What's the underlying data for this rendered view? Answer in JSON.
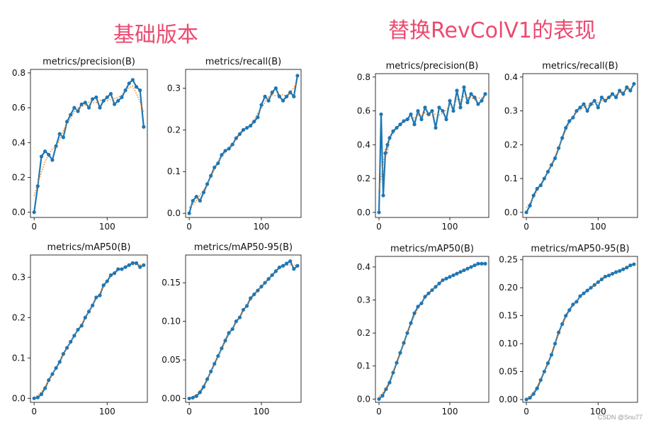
{
  "headings": {
    "left": "基础版本",
    "right": "替换RevColV1的表现"
  },
  "watermark": "CSDN @Snu77",
  "colors": {
    "heading": "#ec4a6f",
    "series": "#1f77b4",
    "smooth": "#ff7f0e"
  },
  "chart_data": [
    {
      "id": "base-precision",
      "type": "line",
      "title": "metrics/precision(B)",
      "xlim": [
        -5,
        155
      ],
      "ylim": [
        -0.03,
        0.82
      ],
      "xticks": [
        0,
        100
      ],
      "yticks": [
        0.0,
        0.2,
        0.4,
        0.6,
        0.8
      ],
      "series": [
        {
          "x": [
            0,
            5,
            10,
            15,
            20,
            25,
            30,
            35,
            40,
            45,
            50,
            55,
            60,
            65,
            70,
            75,
            80,
            85,
            90,
            95,
            100,
            105,
            110,
            115,
            120,
            125,
            130,
            135,
            140,
            145,
            150
          ],
          "values": [
            0.0,
            0.15,
            0.32,
            0.35,
            0.33,
            0.3,
            0.38,
            0.45,
            0.43,
            0.52,
            0.56,
            0.6,
            0.58,
            0.62,
            0.63,
            0.6,
            0.65,
            0.66,
            0.6,
            0.64,
            0.66,
            0.68,
            0.62,
            0.64,
            0.66,
            0.7,
            0.74,
            0.76,
            0.72,
            0.7,
            0.49
          ]
        }
      ]
    },
    {
      "id": "base-recall",
      "type": "line",
      "title": "metrics/recall(B)",
      "xlim": [
        -5,
        155
      ],
      "ylim": [
        -0.01,
        0.345
      ],
      "xticks": [
        0,
        100
      ],
      "yticks": [
        0.0,
        0.1,
        0.2,
        0.3
      ],
      "series": [
        {
          "x": [
            0,
            5,
            10,
            15,
            20,
            25,
            30,
            35,
            40,
            45,
            50,
            55,
            60,
            65,
            70,
            75,
            80,
            85,
            90,
            95,
            100,
            105,
            110,
            115,
            120,
            125,
            130,
            135,
            140,
            145,
            150
          ],
          "values": [
            0.0,
            0.03,
            0.04,
            0.03,
            0.05,
            0.07,
            0.09,
            0.11,
            0.12,
            0.14,
            0.15,
            0.155,
            0.165,
            0.18,
            0.19,
            0.2,
            0.205,
            0.21,
            0.22,
            0.23,
            0.26,
            0.28,
            0.27,
            0.29,
            0.3,
            0.28,
            0.27,
            0.28,
            0.29,
            0.28,
            0.33
          ]
        }
      ]
    },
    {
      "id": "base-map50",
      "type": "line",
      "title": "metrics/mAP50(B)",
      "xlim": [
        -5,
        155
      ],
      "ylim": [
        -0.01,
        0.355
      ],
      "xticks": [
        0,
        100
      ],
      "yticks": [
        0.0,
        0.1,
        0.2,
        0.3
      ],
      "series": [
        {
          "x": [
            0,
            5,
            10,
            15,
            20,
            25,
            30,
            35,
            40,
            45,
            50,
            55,
            60,
            65,
            70,
            75,
            80,
            85,
            90,
            95,
            100,
            105,
            110,
            115,
            120,
            125,
            130,
            135,
            140,
            145,
            150
          ],
          "values": [
            0.0,
            0.002,
            0.01,
            0.025,
            0.045,
            0.06,
            0.075,
            0.09,
            0.11,
            0.125,
            0.14,
            0.155,
            0.17,
            0.18,
            0.2,
            0.215,
            0.23,
            0.25,
            0.255,
            0.28,
            0.29,
            0.305,
            0.31,
            0.32,
            0.32,
            0.325,
            0.33,
            0.335,
            0.335,
            0.325,
            0.33
          ]
        }
      ]
    },
    {
      "id": "base-map5095",
      "type": "line",
      "title": "metrics/mAP50-95(B)",
      "xlim": [
        -5,
        155
      ],
      "ylim": [
        -0.005,
        0.186
      ],
      "xticks": [
        0,
        100
      ],
      "yticks": [
        0.0,
        0.05,
        0.1,
        0.15
      ],
      "series": [
        {
          "x": [
            0,
            5,
            10,
            15,
            20,
            25,
            30,
            35,
            40,
            45,
            50,
            55,
            60,
            65,
            70,
            75,
            80,
            85,
            90,
            95,
            100,
            105,
            110,
            115,
            120,
            125,
            130,
            135,
            140,
            145,
            150
          ],
          "values": [
            0.0,
            0.001,
            0.003,
            0.008,
            0.015,
            0.025,
            0.035,
            0.045,
            0.055,
            0.065,
            0.075,
            0.085,
            0.09,
            0.1,
            0.105,
            0.115,
            0.12,
            0.13,
            0.135,
            0.14,
            0.145,
            0.15,
            0.155,
            0.16,
            0.165,
            0.17,
            0.172,
            0.175,
            0.178,
            0.168,
            0.172
          ]
        }
      ]
    },
    {
      "id": "rev-precision",
      "type": "line",
      "title": "metrics/precision(B)",
      "xlim": [
        -5,
        155
      ],
      "ylim": [
        -0.03,
        0.82
      ],
      "xticks": [
        0,
        100
      ],
      "yticks": [
        0.0,
        0.2,
        0.4,
        0.6,
        0.8
      ],
      "series": [
        {
          "x": [
            0,
            3,
            6,
            9,
            12,
            15,
            20,
            25,
            30,
            35,
            40,
            45,
            50,
            55,
            60,
            65,
            70,
            75,
            80,
            85,
            90,
            95,
            100,
            105,
            110,
            115,
            120,
            125,
            130,
            135,
            140,
            145,
            150
          ],
          "values": [
            0.0,
            0.58,
            0.1,
            0.35,
            0.4,
            0.44,
            0.48,
            0.5,
            0.52,
            0.54,
            0.55,
            0.58,
            0.52,
            0.6,
            0.55,
            0.62,
            0.58,
            0.6,
            0.5,
            0.62,
            0.6,
            0.55,
            0.66,
            0.6,
            0.72,
            0.62,
            0.74,
            0.65,
            0.7,
            0.68,
            0.64,
            0.66,
            0.7
          ]
        }
      ]
    },
    {
      "id": "rev-recall",
      "type": "line",
      "title": "metrics/recall(B)",
      "xlim": [
        -5,
        155
      ],
      "ylim": [
        -0.015,
        0.41
      ],
      "xticks": [
        0,
        100
      ],
      "yticks": [
        0.0,
        0.1,
        0.2,
        0.3,
        0.4
      ],
      "series": [
        {
          "x": [
            0,
            5,
            10,
            15,
            20,
            25,
            30,
            35,
            40,
            45,
            50,
            55,
            60,
            65,
            70,
            75,
            80,
            85,
            90,
            95,
            100,
            105,
            110,
            115,
            120,
            125,
            130,
            135,
            140,
            145,
            150
          ],
          "values": [
            0.0,
            0.02,
            0.05,
            0.07,
            0.08,
            0.1,
            0.12,
            0.14,
            0.16,
            0.19,
            0.22,
            0.25,
            0.27,
            0.28,
            0.3,
            0.31,
            0.32,
            0.3,
            0.32,
            0.33,
            0.31,
            0.34,
            0.33,
            0.34,
            0.35,
            0.34,
            0.36,
            0.35,
            0.37,
            0.36,
            0.38
          ]
        }
      ]
    },
    {
      "id": "rev-map50",
      "type": "line",
      "title": "metrics/mAP50(B)",
      "xlim": [
        -5,
        155
      ],
      "ylim": [
        -0.01,
        0.432
      ],
      "xticks": [
        0,
        100
      ],
      "yticks": [
        0.0,
        0.1,
        0.2,
        0.3,
        0.4
      ],
      "series": [
        {
          "x": [
            0,
            5,
            10,
            15,
            20,
            25,
            30,
            35,
            40,
            45,
            50,
            55,
            60,
            65,
            70,
            75,
            80,
            85,
            90,
            95,
            100,
            105,
            110,
            115,
            120,
            125,
            130,
            135,
            140,
            145,
            150
          ],
          "values": [
            0.0,
            0.01,
            0.03,
            0.05,
            0.08,
            0.11,
            0.14,
            0.17,
            0.2,
            0.23,
            0.26,
            0.28,
            0.29,
            0.31,
            0.32,
            0.33,
            0.34,
            0.35,
            0.36,
            0.365,
            0.37,
            0.375,
            0.38,
            0.385,
            0.39,
            0.395,
            0.4,
            0.405,
            0.41,
            0.41,
            0.41
          ]
        }
      ]
    },
    {
      "id": "rev-map5095",
      "type": "line",
      "title": "metrics/mAP50-95(B)",
      "xlim": [
        -5,
        155
      ],
      "ylim": [
        -0.005,
        0.256
      ],
      "xticks": [
        0,
        100
      ],
      "yticks": [
        0.0,
        0.05,
        0.1,
        0.15,
        0.2,
        0.25
      ],
      "series": [
        {
          "x": [
            0,
            5,
            10,
            15,
            20,
            25,
            30,
            35,
            40,
            45,
            50,
            55,
            60,
            65,
            70,
            75,
            80,
            85,
            90,
            95,
            100,
            105,
            110,
            115,
            120,
            125,
            130,
            135,
            140,
            145,
            150
          ],
          "values": [
            0.0,
            0.003,
            0.01,
            0.02,
            0.035,
            0.05,
            0.065,
            0.08,
            0.1,
            0.12,
            0.135,
            0.15,
            0.16,
            0.17,
            0.175,
            0.185,
            0.19,
            0.195,
            0.2,
            0.205,
            0.21,
            0.215,
            0.22,
            0.222,
            0.225,
            0.228,
            0.23,
            0.233,
            0.236,
            0.24,
            0.242
          ]
        }
      ]
    }
  ]
}
